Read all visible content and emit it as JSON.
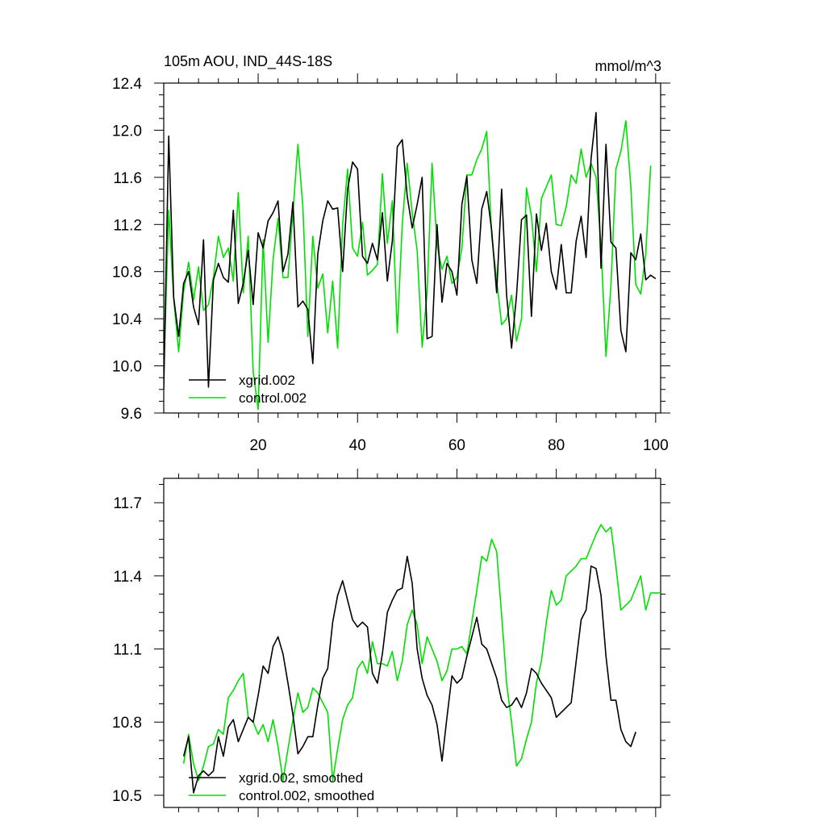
{
  "colors": {
    "xgrid": "#000000",
    "control": "#00e000"
  },
  "chart_data": [
    {
      "type": "line",
      "title": "105m AOU, IND_44S-18S",
      "units": "mmol/m^3",
      "xlim": [
        1,
        101
      ],
      "ylim": [
        9.6,
        12.4
      ],
      "x_ticks": [
        20,
        40,
        60,
        80,
        100
      ],
      "x_tick_labels": [
        "20",
        "40",
        "60",
        "80",
        "100"
      ],
      "y_ticks": [
        9.6,
        10.0,
        10.4,
        10.8,
        11.2,
        11.6,
        12.0,
        12.4
      ],
      "y_tick_labels": [
        "9.6",
        "10.0",
        "10.4",
        "10.8",
        "11.2",
        "11.6",
        "12.0",
        "12.4"
      ],
      "legend_position": "bottom-left",
      "series": [
        {
          "name": "xgrid.002",
          "color": "#000000",
          "x_start": 1,
          "values": [
            9.8,
            11.95,
            10.58,
            10.25,
            10.7,
            10.8,
            10.5,
            10.35,
            11.07,
            9.82,
            10.73,
            10.87,
            10.75,
            10.71,
            11.32,
            10.53,
            10.7,
            10.98,
            10.52,
            11.13,
            11.0,
            11.23,
            11.3,
            11.4,
            10.8,
            10.95,
            11.39,
            10.5,
            10.55,
            10.48,
            10.02,
            10.95,
            11.23,
            11.4,
            11.33,
            11.34,
            10.8,
            11.5,
            11.73,
            11.67,
            10.93,
            10.87,
            11.04,
            10.9,
            11.3,
            10.72,
            11.06,
            11.86,
            11.92,
            11.44,
            11.17,
            11.37,
            11.6,
            10.23,
            10.25,
            11.2,
            10.54,
            10.87,
            10.8,
            10.6,
            11.37,
            11.61,
            10.9,
            10.7,
            11.33,
            11.48,
            11.15,
            10.62,
            11.5,
            10.6,
            10.15,
            10.6,
            11.24,
            11.28,
            10.42,
            11.29,
            10.98,
            11.21,
            10.8,
            10.65,
            11.03,
            10.62,
            10.62,
            11.06,
            11.27,
            10.92,
            11.76,
            12.15,
            10.83,
            11.88,
            11.05,
            11.0,
            10.3,
            10.12,
            10.96,
            10.9,
            11.12,
            10.73,
            10.77,
            10.74
          ]
        },
        {
          "name": "control.002",
          "color": "#00e000",
          "x_start": 1,
          "values": [
            9.93,
            11.32,
            10.57,
            10.12,
            10.63,
            10.88,
            10.56,
            10.84,
            10.47,
            10.52,
            10.75,
            11.1,
            10.92,
            11.0,
            10.72,
            11.47,
            10.62,
            11.1,
            9.95,
            9.63,
            11.07,
            10.2,
            10.9,
            11.25,
            10.75,
            10.75,
            11.3,
            11.88,
            11.35,
            10.25,
            11.1,
            10.66,
            10.78,
            10.28,
            10.72,
            10.15,
            11.2,
            11.67,
            11.0,
            10.93,
            11.22,
            10.77,
            10.81,
            10.86,
            11.63,
            11.04,
            11.4,
            10.28,
            11.2,
            11.72,
            11.3,
            10.98,
            10.16,
            10.62,
            11.72,
            11.02,
            10.82,
            10.93,
            10.7,
            10.75,
            11.0,
            11.62,
            11.62,
            11.75,
            11.84,
            11.99,
            11.1,
            10.73,
            10.35,
            10.4,
            10.6,
            10.21,
            10.4,
            11.51,
            11.27,
            10.8,
            11.42,
            11.52,
            11.62,
            11.2,
            11.19,
            11.35,
            11.62,
            11.55,
            11.84,
            11.6,
            11.72,
            11.6,
            11.02,
            10.08,
            10.68,
            11.67,
            11.82,
            12.08,
            11.52,
            10.69,
            10.61,
            10.95,
            11.7
          ]
        }
      ]
    },
    {
      "type": "line",
      "xlim": [
        1,
        101
      ],
      "ylim": [
        10.45,
        11.8
      ],
      "x_ticks": [
        20,
        40,
        60,
        80,
        100
      ],
      "y_ticks": [
        10.5,
        10.8,
        11.1,
        11.4,
        11.7
      ],
      "y_tick_labels": [
        "10.5",
        "10.8",
        "11.1",
        "11.4",
        "11.7"
      ],
      "legend_position": "bottom-left",
      "series": [
        {
          "name": "xgrid.002, smoothed",
          "color": "#000000",
          "x_start": 5,
          "values": [
            10.66,
            10.74,
            10.51,
            10.58,
            10.6,
            10.58,
            10.6,
            10.74,
            10.66,
            10.78,
            10.81,
            10.72,
            10.77,
            10.82,
            10.8,
            10.91,
            11.03,
            11.0,
            11.11,
            11.15,
            11.08,
            10.96,
            10.83,
            10.67,
            10.7,
            10.74,
            10.74,
            10.87,
            10.98,
            11.02,
            11.21,
            11.32,
            11.38,
            11.3,
            11.22,
            11.19,
            11.21,
            11.19,
            11.0,
            10.96,
            11.08,
            11.25,
            11.3,
            11.34,
            11.35,
            11.48,
            11.37,
            11.1,
            10.98,
            10.91,
            10.87,
            10.79,
            10.64,
            10.82,
            10.99,
            10.96,
            10.98,
            11.07,
            11.15,
            11.23,
            11.12,
            11.1,
            11.04,
            10.98,
            10.89,
            10.86,
            10.87,
            10.9,
            10.86,
            10.92,
            11.02,
            11.0,
            10.96,
            10.93,
            10.9,
            10.82,
            10.84,
            10.86,
            10.88,
            11.05,
            11.22,
            11.26,
            11.44,
            11.43,
            11.32,
            11.07,
            10.89,
            10.89,
            10.77,
            10.72,
            10.7,
            10.76
          ]
        },
        {
          "name": "control.002, smoothed",
          "color": "#00e000",
          "x_start": 5,
          "values": [
            10.63,
            10.75,
            10.63,
            10.56,
            10.62,
            10.7,
            10.71,
            10.77,
            10.75,
            10.9,
            10.93,
            10.97,
            11.0,
            10.82,
            10.8,
            10.75,
            10.79,
            10.72,
            10.81,
            10.7,
            10.56,
            10.69,
            10.81,
            10.92,
            10.84,
            10.86,
            10.94,
            10.92,
            10.88,
            10.84,
            10.56,
            10.69,
            10.81,
            10.87,
            10.9,
            11.02,
            11.05,
            11.0,
            11.13,
            11.04,
            11.04,
            11.03,
            11.09,
            10.97,
            11.05,
            11.2,
            11.26,
            11.2,
            11.04,
            11.15,
            11.1,
            11.05,
            10.97,
            11.01,
            11.1,
            11.1,
            11.11,
            11.08,
            11.21,
            11.34,
            11.48,
            11.46,
            11.55,
            11.5,
            11.24,
            10.96,
            10.8,
            10.62,
            10.65,
            10.73,
            10.8,
            10.96,
            11.05,
            11.21,
            11.34,
            11.28,
            11.3,
            11.4,
            11.42,
            11.44,
            11.47,
            11.47,
            11.52,
            11.57,
            11.61,
            11.58,
            11.6,
            11.44,
            11.26,
            11.28,
            11.3,
            11.35,
            11.4,
            11.26,
            11.33,
            11.33,
            11.33
          ]
        }
      ]
    }
  ]
}
